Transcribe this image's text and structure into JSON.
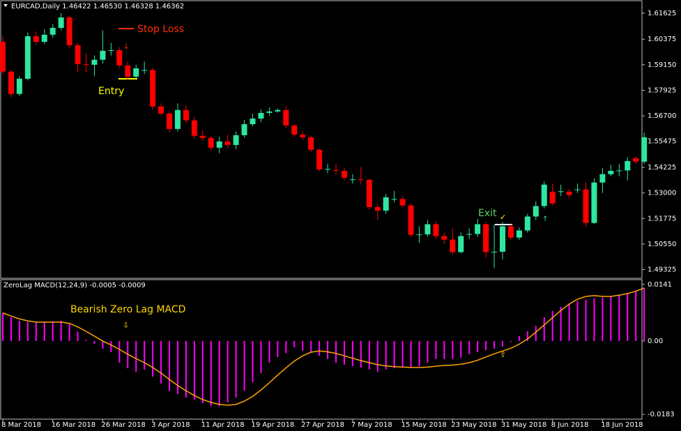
{
  "chart_data": [
    {
      "type": "candlestick",
      "title": "EURCAD,Daily 1.46422 1.46530 1.46328 1.46362",
      "categories": [
        "8 Mar 2018",
        null,
        null,
        null,
        null,
        null,
        "16 Mar 2018",
        null,
        null,
        null,
        null,
        null,
        "26 Mar 2018",
        null,
        null,
        null,
        null,
        null,
        "3 Apr 2018",
        null,
        null,
        null,
        null,
        null,
        "11 Apr 2018",
        null,
        null,
        null,
        null,
        null,
        "19 Apr 2018",
        null,
        null,
        null,
        null,
        null,
        "27 Apr 2018",
        null,
        null,
        null,
        null,
        null,
        "7 May 2018",
        null,
        null,
        null,
        null,
        null,
        "15 May 2018",
        null,
        null,
        null,
        null,
        null,
        "23 May 2018",
        null,
        null,
        null,
        null,
        null,
        "31 May 2018",
        null,
        null,
        null,
        null,
        null,
        "8 Jun 2018",
        null,
        null,
        null,
        null,
        null,
        "18 Jun 2018",
        null,
        null,
        null,
        null,
        null
      ],
      "open": [
        1.6025,
        1.5882,
        1.5775,
        1.5848,
        1.6052,
        1.6025,
        1.6059,
        1.6092,
        1.6142,
        1.6009,
        1.5918,
        1.5915,
        1.5939,
        1.5982,
        1.5985,
        1.5912,
        1.5858,
        1.5888,
        1.589,
        1.5715,
        1.5681,
        1.5607,
        1.5698,
        1.5648,
        1.5574,
        1.5564,
        1.5517,
        1.5547,
        1.553,
        1.5577,
        1.563,
        1.5657,
        1.5684,
        1.5691,
        1.5698,
        1.5624,
        1.558,
        1.5567,
        1.5507,
        1.5413,
        1.541,
        1.5406,
        1.5363,
        1.5365,
        1.5363,
        1.5232,
        1.5215,
        1.5269,
        1.5271,
        1.524,
        1.5099,
        1.5101,
        1.515,
        1.5093,
        1.5076,
        1.5016,
        1.51,
        1.5103,
        1.515,
        1.5016,
        1.5018,
        1.514,
        1.5086,
        1.512,
        1.5187,
        1.5237,
        1.5306,
        1.5306,
        1.5306,
        1.5315,
        1.5317,
        1.5156,
        1.535,
        1.539,
        1.5406,
        1.5408,
        1.5467,
        1.545
      ],
      "high": [
        1.605,
        1.589,
        1.586,
        1.607,
        1.6075,
        1.6085,
        1.611,
        1.6163,
        1.615,
        1.602,
        1.597,
        1.596,
        1.608,
        1.602,
        1.6,
        1.593,
        1.5915,
        1.593,
        1.59,
        1.573,
        1.569,
        1.573,
        1.572,
        1.5665,
        1.56,
        1.5575,
        1.557,
        1.558,
        1.5595,
        1.565,
        1.568,
        1.57,
        1.571,
        1.5705,
        1.5715,
        1.563,
        1.5595,
        1.5575,
        1.5515,
        1.544,
        1.544,
        1.542,
        1.539,
        1.5425,
        1.537,
        1.5245,
        1.5295,
        1.531,
        1.5285,
        1.525,
        1.514,
        1.517,
        1.5165,
        1.511,
        1.513,
        1.511,
        1.513,
        1.5175,
        1.516,
        1.515,
        1.516,
        1.515,
        1.5135,
        1.52,
        1.526,
        1.5355,
        1.5345,
        1.534,
        1.532,
        1.5345,
        1.535,
        1.537,
        1.542,
        1.5435,
        1.544,
        1.547,
        1.5475,
        1.559
      ],
      "low": [
        1.587,
        1.576,
        1.5765,
        1.584,
        1.601,
        1.6015,
        1.6045,
        1.608,
        1.5995,
        1.588,
        1.588,
        1.586,
        1.592,
        1.596,
        1.59,
        1.584,
        1.585,
        1.587,
        1.57,
        1.567,
        1.559,
        1.5595,
        1.5635,
        1.556,
        1.555,
        1.5505,
        1.549,
        1.5515,
        1.551,
        1.5565,
        1.562,
        1.564,
        1.567,
        1.5685,
        1.561,
        1.557,
        1.5555,
        1.5495,
        1.5405,
        1.5395,
        1.5385,
        1.536,
        1.5345,
        1.534,
        1.522,
        1.517,
        1.52,
        1.5255,
        1.523,
        1.509,
        1.506,
        1.509,
        1.508,
        1.5055,
        1.5005,
        1.501,
        1.508,
        1.509,
        1.499,
        1.494,
        1.498,
        1.5075,
        1.5075,
        1.511,
        1.517,
        1.5225,
        1.524,
        1.5285,
        1.5275,
        1.53,
        1.514,
        1.515,
        1.53,
        1.538,
        1.538,
        1.536,
        1.544,
        1.544
      ],
      "close": [
        1.5882,
        1.5775,
        1.5848,
        1.6052,
        1.6025,
        1.6059,
        1.6092,
        1.6142,
        1.6009,
        1.5918,
        1.5915,
        1.5939,
        1.5982,
        1.5985,
        1.5912,
        1.5858,
        1.5898,
        1.589,
        1.5715,
        1.5681,
        1.5607,
        1.5698,
        1.5648,
        1.5574,
        1.5564,
        1.5517,
        1.5547,
        1.553,
        1.5577,
        1.563,
        1.5657,
        1.5684,
        1.5691,
        1.5698,
        1.5624,
        1.558,
        1.5567,
        1.5507,
        1.5413,
        1.5415,
        1.5406,
        1.5373,
        1.5365,
        1.5363,
        1.5232,
        1.5215,
        1.5279,
        1.5271,
        1.524,
        1.5099,
        1.5101,
        1.515,
        1.5093,
        1.5076,
        1.5016,
        1.5093,
        1.5103,
        1.515,
        1.5016,
        1.5018,
        1.514,
        1.5086,
        1.512,
        1.5187,
        1.5237,
        1.534,
        1.525,
        1.5308,
        1.529,
        1.5317,
        1.5156,
        1.535,
        1.539,
        1.5406,
        1.5408,
        1.5453,
        1.545,
        1.5567
      ],
      "up_color": "#2ee6a0",
      "down_color": "#ff0000",
      "ylim": [
        1.4894,
        1.6219
      ],
      "yticks": [
        1.61625,
        1.60375,
        {
          "value": 1.5915,
          "label": "1.59150"
        },
        1.57925,
        {
          "value": 1.567,
          "label": "1.56700"
        },
        1.55475,
        1.54225,
        {
          "value": 1.53,
          "label": "1.53000"
        },
        1.51775,
        {
          "value": 1.5055,
          "label": "1.50550"
        },
        1.49325
      ],
      "annotations": [
        "Stop Loss",
        "Entry",
        "Exit"
      ]
    },
    {
      "type": "macd",
      "title": "ZeroLag MACD(12,24,9) -0.0005 -0.0009",
      "values": [
        0.007,
        0.0059,
        0.005,
        0.0047,
        0.0047,
        0.0047,
        0.0049,
        0.005,
        0.0042,
        0.0023,
        0.0003,
        -0.0007,
        -0.0019,
        -0.0028,
        -0.0054,
        -0.0068,
        -0.0077,
        -0.0071,
        -0.0089,
        -0.0106,
        -0.0124,
        -0.0132,
        -0.0141,
        -0.0146,
        -0.0155,
        -0.0162,
        -0.0162,
        -0.0153,
        -0.0141,
        -0.0124,
        -0.0103,
        -0.008,
        -0.0054,
        -0.004,
        -0.003,
        -0.0016,
        -0.0024,
        -0.0028,
        -0.0037,
        -0.0045,
        -0.0054,
        -0.0059,
        -0.0063,
        -0.0066,
        -0.0071,
        -0.0077,
        -0.0071,
        -0.0068,
        -0.0066,
        -0.0066,
        -0.0063,
        -0.0054,
        -0.0045,
        -0.0045,
        -0.0045,
        -0.0042,
        -0.0033,
        -0.0028,
        -0.0023,
        -0.0019,
        -0.0014,
        -0.0002,
        0.0012,
        0.0024,
        0.0038,
        0.0059,
        0.0075,
        0.0085,
        0.0092,
        0.0099,
        0.0103,
        0.0106,
        0.0108,
        0.0111,
        0.0115,
        0.012,
        0.0125,
        0.0132
      ],
      "color": "#ff00ff",
      "signal": {
        "color": "#ffa500",
        "values": [
          0.007,
          0.0062,
          0.0055,
          0.005,
          0.0047,
          0.0047,
          0.0047,
          0.0047,
          0.0044,
          0.0035,
          0.0024,
          0.0012,
          0.0,
          -0.001,
          -0.0021,
          -0.0033,
          -0.0044,
          -0.0054,
          -0.0066,
          -0.008,
          -0.0096,
          -0.0111,
          -0.0124,
          -0.0136,
          -0.0146,
          -0.0153,
          -0.0158,
          -0.016,
          -0.0158,
          -0.015,
          -0.0138,
          -0.0122,
          -0.0104,
          -0.0085,
          -0.0067,
          -0.005,
          -0.0037,
          -0.0028,
          -0.0025,
          -0.0027,
          -0.0031,
          -0.0037,
          -0.0043,
          -0.0049,
          -0.0054,
          -0.0059,
          -0.0062,
          -0.0064,
          -0.0065,
          -0.0066,
          -0.0066,
          -0.0065,
          -0.0063,
          -0.0061,
          -0.006,
          -0.0058,
          -0.0054,
          -0.0048,
          -0.004,
          -0.0032,
          -0.0025,
          -0.0018,
          -0.0008,
          0.0005,
          0.0022,
          0.004,
          0.0058,
          0.0076,
          0.0092,
          0.0104,
          0.0111,
          0.0113,
          0.0111,
          0.0111,
          0.0114,
          0.0118,
          0.0124,
          0.0132
        ]
      },
      "ylim": [
        -0.0193,
        0.0151
      ],
      "yticks": [
        0.0141,
        {
          "value": 0,
          "label": "0.00"
        },
        -0.0183
      ],
      "annotations": [
        "Bearish Zero Lag MACD"
      ]
    }
  ]
}
